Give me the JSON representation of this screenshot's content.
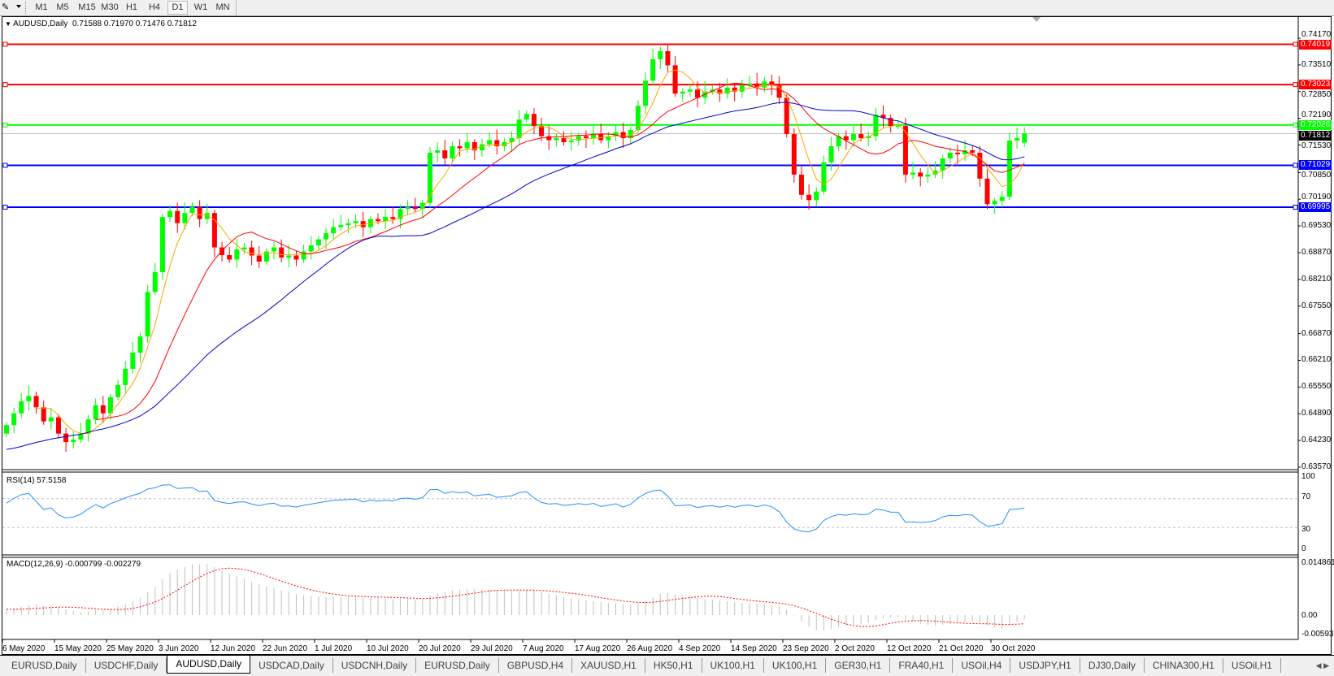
{
  "toolbar": {
    "timeframes": [
      "M1",
      "M5",
      "M15",
      "M30",
      "H1",
      "H4",
      "D1",
      "W1",
      "MN"
    ],
    "active_timeframe": "D1",
    "icon": "draw-tools-icon"
  },
  "main": {
    "symbol_header": "AUDUSD,Daily",
    "ohlc_header": "0.71588 0.71970 0.71476 0.71812"
  },
  "rsi": {
    "header": "RSI(14) 57.5158",
    "ticks": [
      "100",
      "70",
      "30",
      "0"
    ]
  },
  "macd": {
    "header": "MACD(12,26,9) -0.000799 -0.002279",
    "ticks": [
      "0.014861",
      "0.00",
      "-0.005938"
    ]
  },
  "colors": {
    "bull": "#00ff00",
    "bear": "#ff0000",
    "ma_fast": "#ffa500",
    "ma_mid": "#ff0000",
    "ma_slow": "#0000cd",
    "rsi": "#1e90ff",
    "macd_hist": "#c0c0c0",
    "macd_signal": "#ff0000"
  },
  "chart_data": {
    "type": "candlestick",
    "symbol": "AUDUSD",
    "timeframe": "Daily",
    "grid": false,
    "last_bar": {
      "open": 0.71588,
      "high": 0.7197,
      "low": 0.71476,
      "close": 0.71812
    },
    "close": [
      0.6461,
      0.649,
      0.652,
      0.6533,
      0.6505,
      0.647,
      0.648,
      0.644,
      0.6419,
      0.6425,
      0.644,
      0.6475,
      0.651,
      0.649,
      0.653,
      0.656,
      0.66,
      0.664,
      0.668,
      0.679,
      0.6839,
      0.6975,
      0.699,
      0.696,
      0.6985,
      0.7,
      0.697,
      0.6985,
      0.69,
      0.6881,
      0.687,
      0.6895,
      0.69,
      0.688,
      0.6865,
      0.689,
      0.69,
      0.6875,
      0.688,
      0.687,
      0.689,
      0.6905,
      0.692,
      0.6935,
      0.695,
      0.6955,
      0.696,
      0.6965,
      0.695,
      0.697,
      0.6965,
      0.6975,
      0.697,
      0.6995,
      0.7,
      0.6995,
      0.701,
      0.7134,
      0.714,
      0.712,
      0.715,
      0.7145,
      0.716,
      0.714,
      0.7155,
      0.7165,
      0.715,
      0.716,
      0.717,
      0.7216,
      0.723,
      0.72,
      0.7175,
      0.7165,
      0.717,
      0.716,
      0.7164,
      0.7175,
      0.717,
      0.718,
      0.7165,
      0.7175,
      0.7185,
      0.717,
      0.719,
      0.725,
      0.7312,
      0.7365,
      0.7385,
      0.735,
      0.728,
      0.7285,
      0.729,
      0.727,
      0.7285,
      0.729,
      0.728,
      0.7295,
      0.7285,
      0.73,
      0.7305,
      0.7295,
      0.731,
      0.73,
      0.727,
      0.718,
      0.708,
      0.703,
      0.7017,
      0.7038,
      0.711,
      0.715,
      0.7175,
      0.7165,
      0.718,
      0.717,
      0.7175,
      0.7228,
      0.722,
      0.72,
      0.72,
      0.708,
      0.7085,
      0.7075,
      0.708,
      0.709,
      0.712,
      0.7134,
      0.713,
      0.714,
      0.7134,
      0.707,
      0.7007,
      0.7015,
      0.7025,
      0.7164,
      0.717,
      0.71812
    ],
    "price_ticks": [
      "0.74170",
      "0.73510",
      "0.72850",
      "0.72190",
      "0.71530",
      "0.70850",
      "0.70190",
      "0.69530",
      "0.68870",
      "0.68210",
      "0.67550",
      "0.66870",
      "0.66210",
      "0.65550",
      "0.64890",
      "0.64230",
      "0.63570"
    ],
    "ylim": [
      0.6357,
      0.7417
    ],
    "horizontal_levels": [
      {
        "price": "0.74019",
        "color": "#ff0000"
      },
      {
        "price": "0.73023",
        "color": "#ff0000"
      },
      {
        "price": "0.72026",
        "color": "#00ff00"
      },
      {
        "price": "0.71029",
        "color": "#0000ff"
      },
      {
        "price": "0.69995",
        "color": "#0000ff"
      }
    ],
    "current_price": "0.71812",
    "x_labels": [
      "6 May 2020",
      "15 May 2020",
      "25 May 2020",
      "3 Jun 2020",
      "12 Jun 2020",
      "22 Jun 2020",
      "1 Jul 2020",
      "10 Jul 2020",
      "20 Jul 2020",
      "29 Jul 2020",
      "7 Aug 2020",
      "17 Aug 2020",
      "26 Aug 2020",
      "4 Sep 2020",
      "14 Sep 2020",
      "23 Sep 2020",
      "2 Oct 2020",
      "12 Oct 2020",
      "21 Oct 2020",
      "30 Oct 2020"
    ]
  },
  "tabs": [
    "EURUSD,Daily",
    "USDCHF,Daily",
    "AUDUSD,Daily",
    "USDCAD,Daily",
    "USDCNH,Daily",
    "EURUSD,Daily",
    "GBPUSD,H4",
    "XAUUSD,H1",
    "HK50,H1",
    "UK100,H1",
    "UK100,H1",
    "GER30,H1",
    "FRA40,H1",
    "USOil,H4",
    "USDJPY,H1",
    "DJ30,Daily",
    "CHINA300,H1",
    "USOil,H1"
  ],
  "active_tab": 2
}
